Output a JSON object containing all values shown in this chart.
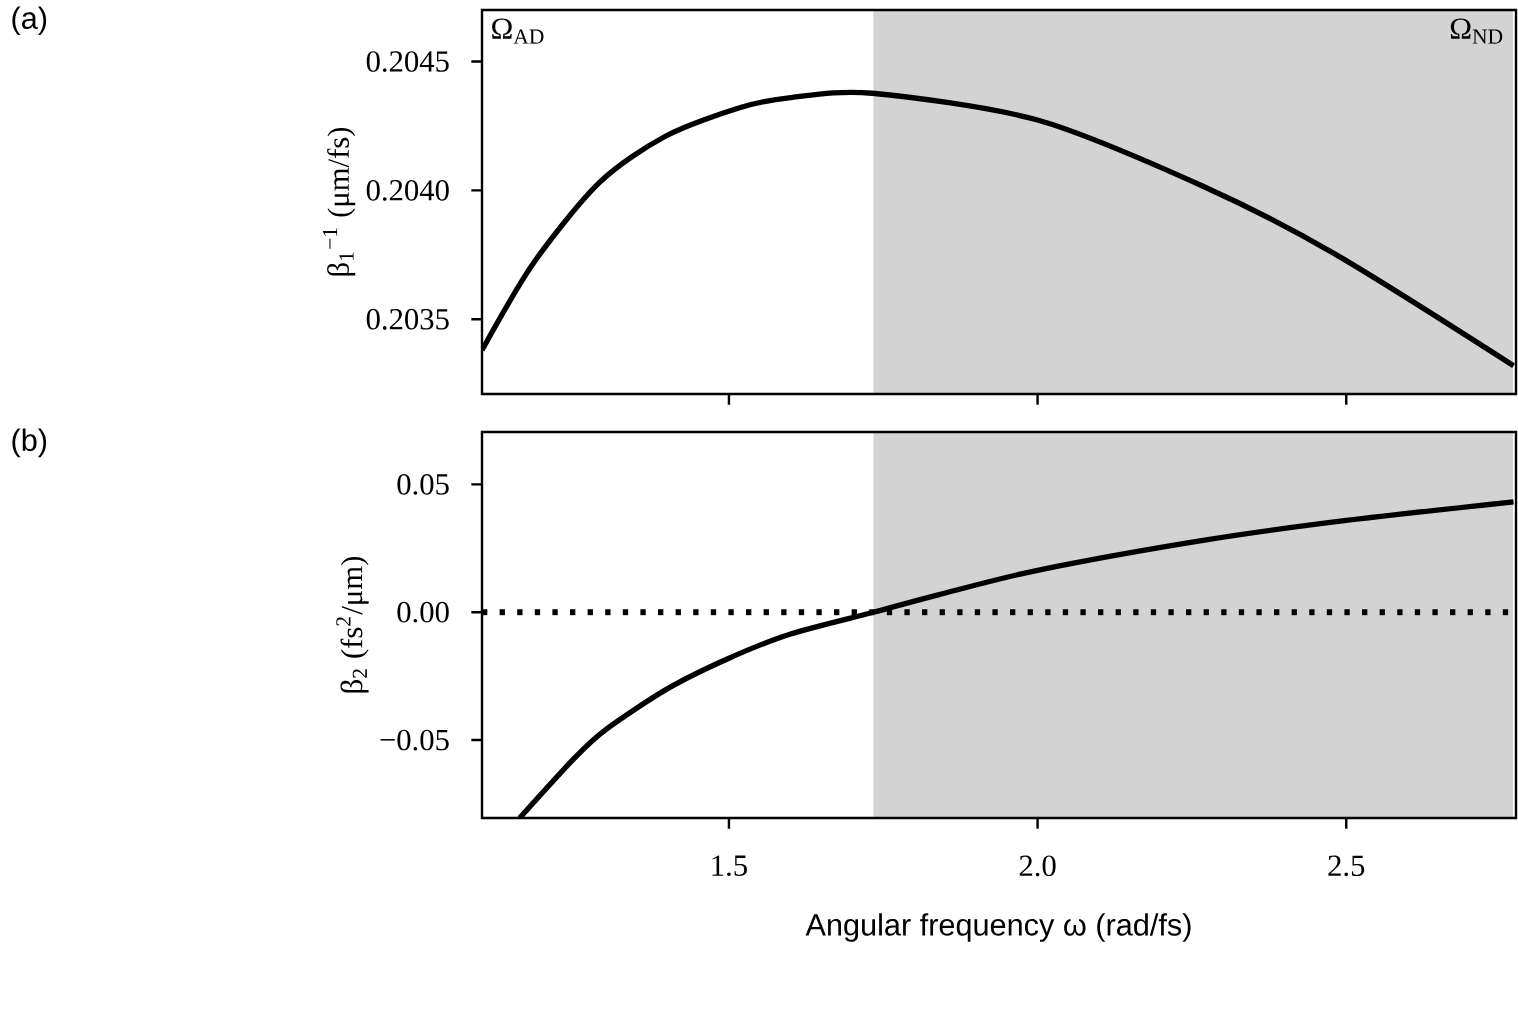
{
  "chart_data": [
    {
      "type": "line",
      "ylabel": "β$_{1}$$^{−1}$ (μm/fs)",
      "annotations": [
        "(a)",
        "Ω$_{AD}$"
      ],
      "x": [
        1.1,
        1.184,
        1.29,
        1.397,
        1.516,
        1.6,
        1.732,
        2.0,
        2.268,
        2.484,
        2.771
      ],
      "series": [
        {
          "color": "#000000",
          "values": [
            0.20338,
            0.20372,
            0.20403,
            0.20421,
            0.20432,
            0.20436,
            0.204377,
            0.204273,
            0.204016,
            0.20375,
            0.20332
          ]
        }
      ],
      "xlim": [
        1.1,
        2.775
      ],
      "ylim": [
        0.20321,
        0.2047
      ],
      "yticks": [
        0.2035,
        {
          "value": 0.204,
          "label": "0.2040"
        },
        0.2045
      ],
      "tick_labels": "y",
      "marker": "none",
      "line_style": "solid",
      "bands": [
        {
          "axis": "x",
          "from": 1.734,
          "to": 2.77,
          "label": "Ω$_{ND}$",
          "color": "#d3d3d3"
        }
      ]
    },
    {
      "type": "line",
      "xlabel": "Angular frequency ω (rad/fs)",
      "ylabel": "β$_{2}$ (fs$^{2}$/μm)",
      "annotations": [
        "(b)"
      ],
      "x": [
        1.161,
        1.25,
        1.3,
        1.4,
        1.5,
        1.6,
        1.734,
        1.839,
        2.0,
        2.268,
        2.5,
        2.771
      ],
      "series": [
        {
          "color": "#000000",
          "values": [
            -0.0805,
            -0.057,
            -0.046,
            -0.03,
            -0.018,
            -0.0085,
            0.0,
            0.0068,
            0.0164,
            0.0281,
            0.0359,
            0.0432
          ]
        }
      ],
      "xlim": [
        1.1,
        2.775
      ],
      "xticks": [
        1.5,
        {
          "value": 2,
          "label": "2.0"
        },
        2.5
      ],
      "ylim": [
        -0.0805,
        0.0705
      ],
      "yticks": [
        {
          "value": -0.05,
          "label": "−0.05"
        },
        {
          "value": 0,
          "label": "0.00"
        },
        0.05
      ],
      "marker": "none",
      "line_style": "solid",
      "bands": [
        {
          "axis": "x",
          "from": 1.734,
          "to": 2.77,
          "color": "#d3d3d3"
        }
      ],
      "ref_lines": [
        {
          "axis": "y",
          "value": 0,
          "line_style": "dotted"
        }
      ]
    }
  ]
}
